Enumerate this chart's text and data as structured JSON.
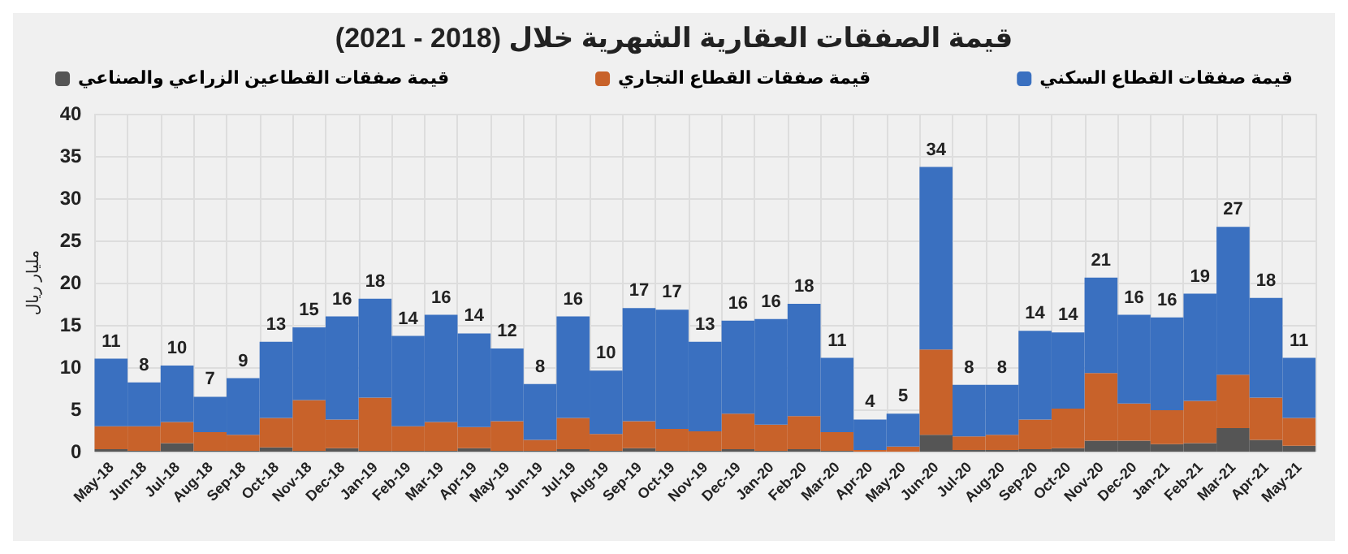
{
  "chart_data": {
    "type": "bar",
    "stacked": true,
    "title": "قيمة الصفقات العقارية الشهرية خلال (2018 - 2021)",
    "ylabel": "مليار ريال",
    "categories": [
      "May-18",
      "Jun-18",
      "Jul-18",
      "Aug-18",
      "Sep-18",
      "Oct-18",
      "Nov-18",
      "Dec-18",
      "Jan-19",
      "Feb-19",
      "Mar-19",
      "Apr-19",
      "May-19",
      "Jun-19",
      "Jul-19",
      "Aug-19",
      "Sep-19",
      "Oct-19",
      "Nov-19",
      "Dec-19",
      "Jan-20",
      "Feb-20",
      "Mar-20",
      "Apr-20",
      "May-20",
      "Jun-20",
      "Jul-20",
      "Aug-20",
      "Sep-20",
      "Oct-20",
      "Nov-20",
      "Dec-20",
      "Jan-21",
      "Feb-21",
      "Mar-21",
      "Apr-21",
      "May-21"
    ],
    "series": [
      {
        "name": "قيمة صفقات القطاعين الزراعي والصناعي",
        "color": "#555555",
        "values": [
          0.3,
          0.1,
          1.0,
          0.1,
          0.1,
          0.5,
          0.1,
          0.4,
          0.1,
          0.1,
          0.1,
          0.4,
          0.1,
          0.1,
          0.3,
          0.1,
          0.4,
          0.1,
          0.1,
          0.3,
          0.1,
          0.3,
          0.1,
          0,
          0,
          2.0,
          0.2,
          0.2,
          0.3,
          0.4,
          1.3,
          1.3,
          0.9,
          1.0,
          2.8,
          1.4,
          0.7
        ]
      },
      {
        "name": "قيمة صفقات القطاع التجاري",
        "color": "#c8622a",
        "values": [
          2.7,
          2.9,
          2.5,
          2.2,
          1.9,
          3.5,
          6.0,
          3.4,
          6.3,
          2.9,
          3.4,
          2.5,
          3.5,
          1.3,
          3.7,
          2.0,
          3.2,
          2.6,
          2.3,
          4.2,
          3.1,
          3.9,
          2.2,
          0.2,
          0.6,
          10.1,
          1.6,
          1.8,
          3.5,
          4.7,
          8.0,
          4.4,
          4.0,
          5.0,
          6.3,
          5.0,
          3.3
        ]
      },
      {
        "name": "قيمة صفقات القطاع السكني",
        "color": "#3a70c0",
        "values": [
          8.0,
          5.2,
          6.7,
          4.2,
          6.7,
          9.0,
          8.6,
          12.2,
          11.7,
          10.7,
          12.7,
          11.1,
          8.6,
          6.6,
          12.0,
          7.5,
          13.4,
          14.1,
          10.6,
          11.0,
          12.5,
          13.3,
          8.8,
          3.6,
          3.9,
          21.6,
          6.1,
          5.9,
          10.5,
          9.0,
          11.3,
          10.5,
          11.0,
          12.7,
          17.5,
          11.8,
          7.1
        ]
      }
    ],
    "totals": [
      "11",
      "8",
      "10",
      "7",
      "9",
      "13",
      "15",
      "16",
      "18",
      "14",
      "16",
      "14",
      "12",
      "8",
      "16",
      "10",
      "17",
      "17",
      "13",
      "16",
      "16",
      "18",
      "11",
      "4",
      "5",
      "34",
      "8",
      "8",
      "14",
      "14",
      "21",
      "16",
      "16",
      "19",
      "27",
      "18",
      "11"
    ],
    "ylim": [
      0,
      40
    ],
    "yticks": [
      0,
      5,
      10,
      15,
      20,
      25,
      30,
      35,
      40
    ],
    "grid": true,
    "legend": "top"
  }
}
